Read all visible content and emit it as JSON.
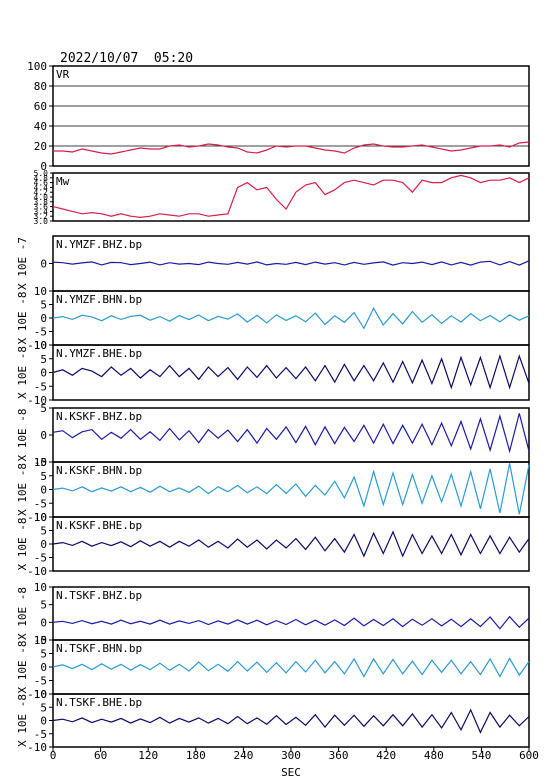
{
  "header": {
    "datetime": "2022/10/07  05:20"
  },
  "x_axis": {
    "label": "SEC",
    "min": 0,
    "max": 600,
    "ticks": [
      0,
      60,
      120,
      180,
      240,
      300,
      360,
      420,
      480,
      540,
      600
    ]
  },
  "colors": {
    "vr": "#d81e4a",
    "mw": "#d81e4a",
    "bhz": "#1a1aa8",
    "bhn": "#2b9ad6",
    "bhe": "#0a0a66",
    "frame": "#000000"
  },
  "chart_data": [
    {
      "type": "line",
      "label": "VR",
      "ylim": [
        0,
        100
      ],
      "yticks": [
        0,
        20,
        40,
        60,
        80,
        100
      ],
      "grid": true,
      "series": [
        {
          "name": "VR",
          "x_start": 0,
          "x_end": 600,
          "values": [
            15,
            15,
            14,
            17,
            15,
            13,
            12,
            14,
            16,
            18,
            17,
            17,
            20,
            21,
            19,
            20,
            22,
            21,
            19,
            18,
            14,
            13,
            16,
            20,
            19,
            20,
            20,
            18,
            16,
            15,
            13,
            18,
            21,
            22,
            20,
            19,
            19,
            20,
            21,
            19,
            17,
            15,
            16,
            18,
            20,
            20,
            21,
            19,
            23,
            24
          ]
        }
      ]
    },
    {
      "type": "line",
      "label": "Mw",
      "ylim": [
        3.0,
        5.0
      ],
      "ytick_labels": [
        "5.0",
        "4.8",
        "4.6",
        "4.4",
        "4.2",
        "4.0",
        "3.8",
        "3.6",
        "3.4",
        "3.2",
        "3.0"
      ],
      "series": [
        {
          "name": "Mw",
          "x_start": 0,
          "x_end": 600,
          "values": [
            3.6,
            3.5,
            3.4,
            3.3,
            3.35,
            3.3,
            3.2,
            3.3,
            3.2,
            3.15,
            3.2,
            3.3,
            3.25,
            3.2,
            3.3,
            3.3,
            3.2,
            3.25,
            3.3,
            4.4,
            4.6,
            4.3,
            4.4,
            3.9,
            3.5,
            4.2,
            4.5,
            4.6,
            4.1,
            4.3,
            4.6,
            4.7,
            4.6,
            4.5,
            4.7,
            4.7,
            4.6,
            4.2,
            4.7,
            4.6,
            4.6,
            4.8,
            4.9,
            4.8,
            4.6,
            4.7,
            4.7,
            4.8,
            4.6,
            4.8
          ]
        }
      ]
    },
    {
      "type": "line",
      "label": "N.YMZF.BHZ.bp",
      "units": "X 10E -7",
      "ylim": [
        -1,
        1
      ],
      "ytick_labels": [
        "0"
      ],
      "ytick_values": [
        0
      ],
      "series": [
        {
          "name": "N.YMZF.BHZ.bp",
          "x_start": 0,
          "x_end": 600,
          "values": [
            0.05,
            0.03,
            -0.02,
            0.02,
            0.06,
            -0.05,
            0.04,
            0.03,
            -0.04,
            0.0,
            0.05,
            -0.05,
            0.03,
            -0.02,
            0.0,
            -0.04,
            0.05,
            0.0,
            -0.03,
            0.04,
            -0.02,
            0.06,
            -0.05,
            0.0,
            -0.03,
            0.04,
            -0.04,
            0.05,
            -0.02,
            0.03,
            -0.05,
            0.04,
            -0.03,
            0.02,
            0.06,
            -0.06,
            0.03,
            0.0,
            0.05,
            -0.04,
            0.06,
            -0.05,
            0.04,
            -0.06,
            0.05,
            0.08,
            -0.05,
            0.07,
            -0.06,
            0.1
          ]
        }
      ]
    },
    {
      "type": "line",
      "label": "N.YMZF.BHN.bp",
      "units": "X 10E -8",
      "ylim": [
        -10,
        10
      ],
      "ytick_labels": [
        "10",
        "5",
        "0",
        "-5",
        "-10"
      ],
      "ytick_values": [
        10,
        5,
        0,
        -5,
        -10
      ],
      "series": [
        {
          "name": "N.YMZF.BHN.bp",
          "x_start": 0,
          "x_end": 600,
          "values": [
            0.0,
            0.5,
            -0.5,
            1.0,
            0.4,
            -1.0,
            0.8,
            -0.5,
            0.6,
            1.0,
            -0.8,
            0.5,
            -1.2,
            0.9,
            -0.6,
            1.1,
            -1.0,
            0.6,
            -0.4,
            1.5,
            -1.5,
            1.0,
            -1.8,
            1.2,
            -0.9,
            0.8,
            -1.4,
            1.8,
            -2.4,
            0.8,
            -1.6,
            2.0,
            -3.8,
            3.6,
            -2.6,
            1.6,
            -2.2,
            2.4,
            -1.6,
            1.2,
            -2.0,
            0.8,
            -1.5,
            1.6,
            -1.0,
            0.9,
            -1.4,
            1.2,
            -0.8,
            0.8
          ]
        }
      ]
    },
    {
      "type": "line",
      "label": "N.YMZF.BHE.bp",
      "units": "X 10E -8",
      "ylim": [
        -10,
        10
      ],
      "ytick_labels": [
        "10",
        "5",
        "0",
        "-5",
        "-10"
      ],
      "ytick_values": [
        10,
        5,
        0,
        -5,
        -10
      ],
      "series": [
        {
          "name": "N.YMZF.BHE.bp",
          "x_start": 0,
          "x_end": 600,
          "values": [
            0.0,
            1.0,
            -1.0,
            1.5,
            0.5,
            -1.5,
            2.0,
            -1.0,
            1.5,
            -2.0,
            1.0,
            -1.5,
            2.5,
            -1.5,
            1.5,
            -2.5,
            2.0,
            -1.5,
            1.8,
            -2.5,
            2.0,
            -1.8,
            2.5,
            -2.0,
            1.8,
            -2.2,
            2.0,
            -3.0,
            2.5,
            -3.5,
            3.0,
            -3.0,
            2.5,
            -3.0,
            3.5,
            -3.5,
            4.0,
            -3.8,
            4.5,
            -4.0,
            5.0,
            -5.5,
            5.5,
            -4.5,
            5.5,
            -5.5,
            6.0,
            -5.5,
            6.0,
            -4.0
          ]
        }
      ]
    },
    {
      "type": "line",
      "label": "N.KSKF.BHZ.bp",
      "units": "X 10E -8",
      "ylim": [
        -5,
        5
      ],
      "ytick_labels": [
        "5",
        "0",
        "-5"
      ],
      "ytick_values": [
        5,
        0,
        -5
      ],
      "series": [
        {
          "name": "N.KSKF.BHZ.bp",
          "x_start": 0,
          "x_end": 600,
          "values": [
            0.5,
            0.8,
            -0.5,
            0.6,
            1.0,
            -0.8,
            0.5,
            -0.6,
            1.0,
            -0.8,
            0.6,
            -1.0,
            1.2,
            -0.9,
            0.8,
            -1.4,
            1.0,
            -0.6,
            0.9,
            -1.2,
            1.0,
            -1.5,
            1.2,
            -0.8,
            1.5,
            -1.4,
            1.6,
            -1.8,
            1.5,
            -1.6,
            1.4,
            -1.2,
            1.8,
            -1.5,
            2.0,
            -1.6,
            1.8,
            -1.5,
            2.0,
            -1.8,
            2.2,
            -2.0,
            2.5,
            -2.6,
            3.0,
            -2.8,
            3.5,
            -3.0,
            4.0,
            -3.0
          ]
        }
      ]
    },
    {
      "type": "line",
      "label": "N.KSKF.BHN.bp",
      "units": "X 10E -8",
      "ylim": [
        -10,
        10
      ],
      "ytick_labels": [
        "10",
        "5",
        "0",
        "-5",
        "-10"
      ],
      "ytick_values": [
        10,
        5,
        0,
        -5,
        -10
      ],
      "series": [
        {
          "name": "N.KSKF.BHN.bp",
          "x_start": 0,
          "x_end": 600,
          "values": [
            0.0,
            0.5,
            -0.5,
            1.0,
            -0.8,
            0.6,
            -0.6,
            1.0,
            -0.8,
            0.8,
            -1.0,
            1.2,
            -0.8,
            0.6,
            -1.0,
            1.2,
            -1.5,
            1.0,
            -0.8,
            1.5,
            -1.2,
            1.0,
            -1.5,
            1.8,
            -1.4,
            2.0,
            -2.5,
            1.5,
            -2.0,
            3.0,
            -3.0,
            4.5,
            -6.0,
            6.5,
            -5.5,
            6.0,
            -5.5,
            5.5,
            -5.0,
            5.0,
            -4.5,
            5.5,
            -6.0,
            6.5,
            -7.0,
            7.5,
            -8.5,
            9.5,
            -9.0,
            9.0
          ]
        }
      ]
    },
    {
      "type": "line",
      "label": "N.KSKF.BHE.bp",
      "units": "X 10E -8",
      "ylim": [
        -10,
        10
      ],
      "ytick_labels": [
        "10",
        "5",
        "0",
        "-5",
        "-10"
      ],
      "ytick_values": [
        10,
        5,
        0,
        -5,
        -10
      ],
      "series": [
        {
          "name": "N.KSKF.BHE.bp",
          "x_start": 0,
          "x_end": 600,
          "values": [
            0.0,
            0.5,
            -0.5,
            1.0,
            -0.8,
            0.5,
            -0.6,
            0.8,
            -1.0,
            1.2,
            -0.8,
            1.0,
            -1.2,
            1.0,
            -0.8,
            1.5,
            -1.2,
            1.0,
            -1.5,
            1.8,
            -1.2,
            1.5,
            -1.8,
            1.5,
            -1.5,
            2.0,
            -2.0,
            2.5,
            -2.5,
            2.0,
            -3.0,
            3.5,
            -4.5,
            4.0,
            -3.5,
            4.5,
            -4.5,
            3.5,
            -3.5,
            3.0,
            -3.5,
            3.5,
            -4.0,
            3.5,
            -3.5,
            3.0,
            -3.5,
            2.5,
            -3.0,
            2.0
          ]
        }
      ]
    },
    {
      "type": "line",
      "label": "N.TSKF.BHZ.bp",
      "units": "X 10E -8",
      "ylim": [
        -5,
        10
      ],
      "ytick_labels": [
        "10",
        "5",
        "0",
        "-5"
      ],
      "ytick_values": [
        10,
        5,
        0,
        -5
      ],
      "series": [
        {
          "name": "N.TSKF.BHZ.bp",
          "x_start": 0,
          "x_end": 600,
          "values": [
            0.0,
            0.3,
            -0.3,
            0.5,
            -0.4,
            0.3,
            -0.5,
            0.6,
            -0.4,
            0.3,
            -0.5,
            0.6,
            -0.5,
            0.4,
            -0.3,
            0.5,
            -0.6,
            0.4,
            -0.5,
            0.7,
            -0.5,
            0.6,
            -0.7,
            0.5,
            -0.6,
            0.8,
            -0.7,
            0.6,
            -0.8,
            0.7,
            -0.9,
            1.2,
            -1.0,
            0.8,
            -0.9,
            1.0,
            -1.2,
            0.9,
            -0.8,
            1.0,
            -1.0,
            0.9,
            -1.2,
            1.0,
            -1.2,
            1.5,
            -1.8,
            1.6,
            -1.4,
            1.2
          ]
        }
      ]
    },
    {
      "type": "line",
      "label": "N.TSKF.BHN.bp",
      "units": "X 10E -8",
      "ylim": [
        -10,
        10
      ],
      "ytick_labels": [
        "10",
        "5",
        "0",
        "-5",
        "-10"
      ],
      "ytick_values": [
        10,
        5,
        0,
        -5,
        -10
      ],
      "series": [
        {
          "name": "N.TSKF.BHN.bp",
          "x_start": 0,
          "x_end": 600,
          "values": [
            0.0,
            0.8,
            -0.6,
            1.0,
            -1.0,
            1.2,
            -0.8,
            1.0,
            -1.2,
            0.9,
            -1.0,
            1.4,
            -1.2,
            1.0,
            -1.5,
            1.8,
            -1.4,
            1.0,
            -1.6,
            2.0,
            -1.5,
            1.8,
            -2.0,
            1.6,
            -2.2,
            2.0,
            -1.8,
            2.5,
            -2.2,
            2.0,
            -2.5,
            3.0,
            -3.5,
            3.0,
            -2.5,
            2.8,
            -2.5,
            2.2,
            -2.8,
            2.5,
            -2.0,
            2.5,
            -2.5,
            2.0,
            -2.8,
            3.0,
            -3.5,
            3.2,
            -3.0,
            2.0
          ]
        }
      ]
    },
    {
      "type": "line",
      "label": "N.TSKF.BHE.bp",
      "units": "X 10E -8",
      "ylim": [
        -10,
        10
      ],
      "ytick_labels": [
        "10",
        "5",
        "0",
        "-5",
        "-10"
      ],
      "ytick_values": [
        10,
        5,
        0,
        -5,
        -10
      ],
      "series": [
        {
          "name": "N.TSKF.BHE.bp",
          "x_start": 0,
          "x_end": 600,
          "values": [
            0.0,
            0.5,
            -0.5,
            1.0,
            -0.8,
            0.5,
            -0.6,
            0.8,
            -1.0,
            0.6,
            -0.8,
            1.2,
            -1.0,
            0.8,
            -0.6,
            1.0,
            -1.0,
            0.8,
            -1.2,
            1.5,
            -1.2,
            1.0,
            -1.4,
            1.8,
            -1.5,
            1.2,
            -1.8,
            2.2,
            -2.5,
            2.0,
            -1.8,
            2.0,
            -2.2,
            1.8,
            -2.0,
            2.2,
            -2.0,
            2.5,
            -2.5,
            2.2,
            -2.8,
            3.0,
            -3.5,
            4.0,
            -4.5,
            3.0,
            -2.5,
            2.0,
            -2.0,
            1.5
          ]
        }
      ]
    }
  ]
}
